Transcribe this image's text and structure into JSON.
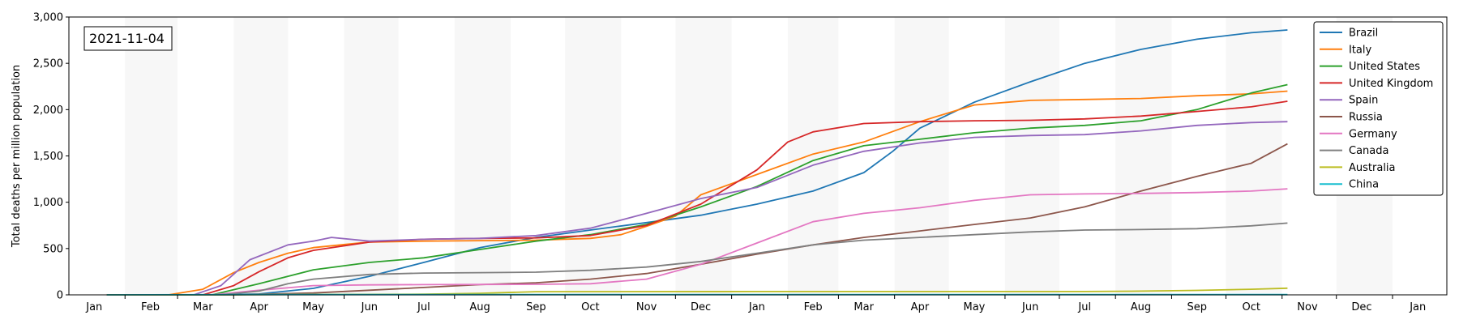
{
  "chart_data": {
    "type": "line",
    "title": "",
    "date_label": "2021-11-04",
    "ylabel": "Total deaths per million population",
    "xlabel": "",
    "x_range": [
      "2020-01-01",
      "2022-01-31"
    ],
    "ylim": [
      0,
      3000
    ],
    "y_ticks": [
      0,
      500,
      1000,
      1500,
      2000,
      2500,
      3000
    ],
    "y_tick_labels": [
      "0",
      "500",
      "1,000",
      "1,500",
      "2,000",
      "2,500",
      "3,000"
    ],
    "x_ticks": [
      {
        "date": "2020-01-15",
        "label": "Jan"
      },
      {
        "date": "2020-02-15",
        "label": "Feb"
      },
      {
        "date": "2020-03-15",
        "label": "Mar"
      },
      {
        "date": "2020-04-15",
        "label": "Apr"
      },
      {
        "date": "2020-05-15",
        "label": "May"
      },
      {
        "date": "2020-06-15",
        "label": "Jun"
      },
      {
        "date": "2020-07-15",
        "label": "Jul"
      },
      {
        "date": "2020-08-15",
        "label": "Aug"
      },
      {
        "date": "2020-09-15",
        "label": "Sep"
      },
      {
        "date": "2020-10-15",
        "label": "Oct"
      },
      {
        "date": "2020-11-15",
        "label": "Nov"
      },
      {
        "date": "2020-12-15",
        "label": "Dec"
      },
      {
        "date": "2021-01-15",
        "label": "Jan"
      },
      {
        "date": "2021-02-15",
        "label": "Feb"
      },
      {
        "date": "2021-03-15",
        "label": "Mar"
      },
      {
        "date": "2021-04-15",
        "label": "Apr"
      },
      {
        "date": "2021-05-15",
        "label": "May"
      },
      {
        "date": "2021-06-15",
        "label": "Jun"
      },
      {
        "date": "2021-07-15",
        "label": "Jul"
      },
      {
        "date": "2021-08-15",
        "label": "Aug"
      },
      {
        "date": "2021-09-15",
        "label": "Sep"
      },
      {
        "date": "2021-10-15",
        "label": "Oct"
      },
      {
        "date": "2021-11-15",
        "label": "Nov"
      },
      {
        "date": "2021-12-15",
        "label": "Dec"
      },
      {
        "date": "2022-01-15",
        "label": "Jan"
      }
    ],
    "grid": false,
    "alternating_month_shading": true,
    "legend_position": "top-right",
    "series": [
      {
        "name": "Brazil",
        "color": "#1f77b4",
        "points": [
          [
            "2020-01-22",
            0
          ],
          [
            "2020-03-20",
            0
          ],
          [
            "2020-04-15",
            10
          ],
          [
            "2020-05-15",
            70
          ],
          [
            "2020-06-15",
            200
          ],
          [
            "2020-07-15",
            350
          ],
          [
            "2020-08-15",
            510
          ],
          [
            "2020-09-15",
            620
          ],
          [
            "2020-10-15",
            700
          ],
          [
            "2020-11-15",
            780
          ],
          [
            "2020-12-15",
            860
          ],
          [
            "2021-01-15",
            980
          ],
          [
            "2021-02-15",
            1120
          ],
          [
            "2021-03-15",
            1320
          ],
          [
            "2021-03-31",
            1550
          ],
          [
            "2021-04-15",
            1800
          ],
          [
            "2021-05-15",
            2080
          ],
          [
            "2021-06-15",
            2300
          ],
          [
            "2021-07-15",
            2500
          ],
          [
            "2021-08-15",
            2650
          ],
          [
            "2021-09-15",
            2760
          ],
          [
            "2021-10-15",
            2830
          ],
          [
            "2021-11-04",
            2860
          ]
        ]
      },
      {
        "name": "Italy",
        "color": "#ff7f0e",
        "points": [
          [
            "2020-01-22",
            0
          ],
          [
            "2020-02-25",
            0
          ],
          [
            "2020-03-15",
            60
          ],
          [
            "2020-04-01",
            240
          ],
          [
            "2020-04-15",
            350
          ],
          [
            "2020-05-01",
            450
          ],
          [
            "2020-05-15",
            510
          ],
          [
            "2020-06-15",
            570
          ],
          [
            "2020-07-15",
            580
          ],
          [
            "2020-08-15",
            585
          ],
          [
            "2020-09-15",
            590
          ],
          [
            "2020-10-15",
            610
          ],
          [
            "2020-11-01",
            650
          ],
          [
            "2020-11-15",
            740
          ],
          [
            "2020-12-01",
            850
          ],
          [
            "2020-12-15",
            1080
          ],
          [
            "2021-01-15",
            1300
          ],
          [
            "2021-02-15",
            1520
          ],
          [
            "2021-03-15",
            1650
          ],
          [
            "2021-04-15",
            1870
          ],
          [
            "2021-05-15",
            2050
          ],
          [
            "2021-06-15",
            2100
          ],
          [
            "2021-07-15",
            2110
          ],
          [
            "2021-08-15",
            2120
          ],
          [
            "2021-09-15",
            2150
          ],
          [
            "2021-10-15",
            2170
          ],
          [
            "2021-11-04",
            2200
          ]
        ]
      },
      {
        "name": "United States",
        "color": "#2ca02c",
        "points": [
          [
            "2020-01-22",
            0
          ],
          [
            "2020-03-20",
            0
          ],
          [
            "2020-04-15",
            120
          ],
          [
            "2020-05-15",
            270
          ],
          [
            "2020-06-15",
            350
          ],
          [
            "2020-07-15",
            400
          ],
          [
            "2020-08-15",
            490
          ],
          [
            "2020-09-15",
            580
          ],
          [
            "2020-10-15",
            650
          ],
          [
            "2020-11-15",
            760
          ],
          [
            "2020-12-15",
            950
          ],
          [
            "2021-01-15",
            1170
          ],
          [
            "2021-02-15",
            1450
          ],
          [
            "2021-03-15",
            1610
          ],
          [
            "2021-04-15",
            1680
          ],
          [
            "2021-05-15",
            1750
          ],
          [
            "2021-06-15",
            1800
          ],
          [
            "2021-07-15",
            1830
          ],
          [
            "2021-08-15",
            1880
          ],
          [
            "2021-09-15",
            2000
          ],
          [
            "2021-10-15",
            2180
          ],
          [
            "2021-11-04",
            2270
          ]
        ]
      },
      {
        "name": "United Kingdom",
        "color": "#d62728",
        "points": [
          [
            "2020-01-22",
            0
          ],
          [
            "2020-03-15",
            0
          ],
          [
            "2020-04-01",
            100
          ],
          [
            "2020-04-15",
            250
          ],
          [
            "2020-05-01",
            400
          ],
          [
            "2020-05-15",
            480
          ],
          [
            "2020-06-15",
            570
          ],
          [
            "2020-07-15",
            600
          ],
          [
            "2020-08-15",
            610
          ],
          [
            "2020-09-15",
            615
          ],
          [
            "2020-10-15",
            640
          ],
          [
            "2020-11-15",
            750
          ],
          [
            "2020-12-15",
            980
          ],
          [
            "2021-01-15",
            1350
          ],
          [
            "2021-02-01",
            1650
          ],
          [
            "2021-02-15",
            1760
          ],
          [
            "2021-03-15",
            1850
          ],
          [
            "2021-04-15",
            1870
          ],
          [
            "2021-05-15",
            1880
          ],
          [
            "2021-06-15",
            1885
          ],
          [
            "2021-07-15",
            1900
          ],
          [
            "2021-08-15",
            1930
          ],
          [
            "2021-09-15",
            1980
          ],
          [
            "2021-10-15",
            2030
          ],
          [
            "2021-11-04",
            2090
          ]
        ]
      },
      {
        "name": "Spain",
        "color": "#9467bd",
        "points": [
          [
            "2020-01-22",
            0
          ],
          [
            "2020-03-10",
            0
          ],
          [
            "2020-03-25",
            100
          ],
          [
            "2020-04-10",
            380
          ],
          [
            "2020-05-01",
            540
          ],
          [
            "2020-05-15",
            580
          ],
          [
            "2020-05-25",
            620
          ],
          [
            "2020-06-15",
            580
          ],
          [
            "2020-07-15",
            600
          ],
          [
            "2020-08-15",
            610
          ],
          [
            "2020-09-15",
            640
          ],
          [
            "2020-10-15",
            720
          ],
          [
            "2020-11-15",
            880
          ],
          [
            "2020-12-15",
            1040
          ],
          [
            "2021-01-15",
            1160
          ],
          [
            "2021-02-15",
            1400
          ],
          [
            "2021-03-15",
            1550
          ],
          [
            "2021-04-15",
            1640
          ],
          [
            "2021-05-15",
            1700
          ],
          [
            "2021-06-15",
            1720
          ],
          [
            "2021-07-15",
            1730
          ],
          [
            "2021-08-15",
            1770
          ],
          [
            "2021-09-15",
            1830
          ],
          [
            "2021-10-15",
            1860
          ],
          [
            "2021-11-04",
            1870
          ]
        ]
      },
      {
        "name": "Russia",
        "color": "#8c564b",
        "points": [
          [
            "2020-01-22",
            0
          ],
          [
            "2020-04-01",
            0
          ],
          [
            "2020-05-15",
            20
          ],
          [
            "2020-06-15",
            50
          ],
          [
            "2020-07-15",
            80
          ],
          [
            "2020-08-15",
            110
          ],
          [
            "2020-09-15",
            130
          ],
          [
            "2020-10-15",
            170
          ],
          [
            "2020-11-15",
            230
          ],
          [
            "2020-12-15",
            330
          ],
          [
            "2021-01-15",
            440
          ],
          [
            "2021-02-15",
            540
          ],
          [
            "2021-03-15",
            620
          ],
          [
            "2021-04-15",
            690
          ],
          [
            "2021-05-15",
            760
          ],
          [
            "2021-06-15",
            830
          ],
          [
            "2021-07-15",
            950
          ],
          [
            "2021-08-15",
            1120
          ],
          [
            "2021-09-15",
            1280
          ],
          [
            "2021-10-15",
            1420
          ],
          [
            "2021-11-04",
            1630
          ]
        ]
      },
      {
        "name": "Germany",
        "color": "#e377c2",
        "points": [
          [
            "2020-01-22",
            0
          ],
          [
            "2020-03-20",
            0
          ],
          [
            "2020-04-15",
            50
          ],
          [
            "2020-05-15",
            100
          ],
          [
            "2020-06-15",
            108
          ],
          [
            "2020-07-15",
            110
          ],
          [
            "2020-08-15",
            112
          ],
          [
            "2020-09-15",
            114
          ],
          [
            "2020-10-15",
            120
          ],
          [
            "2020-11-15",
            170
          ],
          [
            "2020-12-15",
            330
          ],
          [
            "2021-01-15",
            560
          ],
          [
            "2021-02-15",
            790
          ],
          [
            "2021-03-15",
            880
          ],
          [
            "2021-04-15",
            940
          ],
          [
            "2021-05-15",
            1020
          ],
          [
            "2021-06-15",
            1080
          ],
          [
            "2021-07-15",
            1090
          ],
          [
            "2021-08-15",
            1095
          ],
          [
            "2021-09-15",
            1105
          ],
          [
            "2021-10-15",
            1120
          ],
          [
            "2021-11-04",
            1145
          ]
        ]
      },
      {
        "name": "Canada",
        "color": "#7f7f7f",
        "points": [
          [
            "2020-01-22",
            0
          ],
          [
            "2020-03-25",
            0
          ],
          [
            "2020-04-15",
            40
          ],
          [
            "2020-05-01",
            120
          ],
          [
            "2020-05-15",
            170
          ],
          [
            "2020-06-15",
            220
          ],
          [
            "2020-07-15",
            235
          ],
          [
            "2020-08-15",
            240
          ],
          [
            "2020-09-15",
            245
          ],
          [
            "2020-10-15",
            265
          ],
          [
            "2020-11-15",
            300
          ],
          [
            "2020-12-15",
            360
          ],
          [
            "2021-01-15",
            450
          ],
          [
            "2021-02-15",
            540
          ],
          [
            "2021-03-15",
            590
          ],
          [
            "2021-04-15",
            620
          ],
          [
            "2021-05-15",
            650
          ],
          [
            "2021-06-15",
            680
          ],
          [
            "2021-07-15",
            700
          ],
          [
            "2021-08-15",
            705
          ],
          [
            "2021-09-15",
            715
          ],
          [
            "2021-10-15",
            745
          ],
          [
            "2021-11-04",
            775
          ]
        ]
      },
      {
        "name": "Australia",
        "color": "#bcbd22",
        "points": [
          [
            "2020-01-22",
            0
          ],
          [
            "2020-03-25",
            0
          ],
          [
            "2020-05-15",
            4
          ],
          [
            "2020-07-15",
            7
          ],
          [
            "2020-08-15",
            17
          ],
          [
            "2020-09-15",
            34
          ],
          [
            "2020-10-15",
            35
          ],
          [
            "2021-01-15",
            36
          ],
          [
            "2021-04-15",
            36
          ],
          [
            "2021-07-15",
            36
          ],
          [
            "2021-08-15",
            40
          ],
          [
            "2021-09-15",
            48
          ],
          [
            "2021-10-15",
            60
          ],
          [
            "2021-11-04",
            72
          ]
        ]
      },
      {
        "name": "China",
        "color": "#17becf",
        "points": [
          [
            "2020-01-22",
            0
          ],
          [
            "2020-02-15",
            1
          ],
          [
            "2020-03-15",
            2
          ],
          [
            "2020-04-20",
            3
          ],
          [
            "2021-11-04",
            3
          ]
        ]
      }
    ]
  }
}
